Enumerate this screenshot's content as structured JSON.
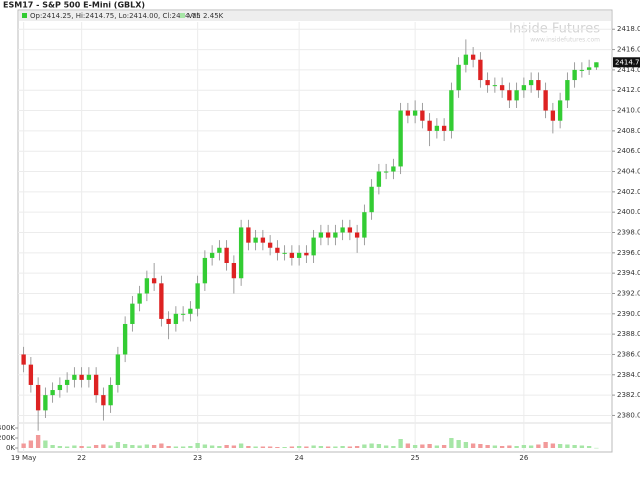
{
  "chart_data": {
    "type": "candlestick",
    "title": "ESM17 - S&P 500 E-Mini (GBLX)",
    "ohlc_label": "Op:2414.25, Hi:2414.75, Lo:2414.00, Cl:2414.75",
    "volume_label": "Vol: 2.45K",
    "watermark": "Inside Futures",
    "watermark_url": "www.insidefutures.com",
    "categories": [
      "19 May",
      null,
      null,
      null,
      null,
      null,
      null,
      null,
      "22",
      null,
      null,
      null,
      null,
      null,
      null,
      null,
      null,
      null,
      null,
      null,
      null,
      null,
      null,
      null,
      "23",
      null,
      null,
      null,
      null,
      null,
      null,
      null,
      null,
      null,
      null,
      null,
      null,
      null,
      "24",
      null,
      null,
      null,
      null,
      null,
      null,
      null,
      null,
      null,
      null,
      null,
      null,
      null,
      null,
      null,
      "25",
      null,
      null,
      null,
      null,
      null,
      null,
      null,
      null,
      null,
      null,
      null,
      null,
      null,
      null,
      "26",
      null,
      null,
      null,
      null,
      null,
      null,
      null,
      null,
      null,
      null
    ],
    "open": [
      2386,
      2385,
      2383,
      2380.5,
      2382,
      2382.5,
      2383,
      2383.5,
      2384,
      2383.5,
      2384,
      2382,
      2381,
      2383,
      2386,
      2389,
      2391,
      2392,
      2393.5,
      2393,
      2389.5,
      2389,
      2390,
      2390,
      2390.5,
      2393,
      2395.5,
      2396,
      2396.5,
      2395,
      2393.5,
      2398.5,
      2397,
      2397.5,
      2397,
      2396.5,
      2396,
      2396,
      2395.5,
      2396,
      2395.75,
      2397.5,
      2398,
      2397.5,
      2398,
      2398.5,
      2398,
      2397.5,
      2400,
      2402.5,
      2404,
      2404,
      2404.5,
      2410,
      2409.5,
      2410,
      2409,
      2408,
      2408.5,
      2408,
      2412,
      2414.5,
      2415.5,
      2415,
      2413,
      2412.5,
      2412.5,
      2412,
      2411,
      2412,
      2412.5,
      2413,
      2412,
      2410,
      2409,
      2411,
      2413,
      2414,
      2414,
      2414.25
    ],
    "high": [
      2386.75,
      2385.75,
      2383.75,
      2382.75,
      2383.25,
      2383.75,
      2384.25,
      2384.75,
      2384.75,
      2384.75,
      2384.75,
      2382.75,
      2383.75,
      2386.75,
      2389.75,
      2391.75,
      2392.75,
      2394.25,
      2395,
      2393.75,
      2390.25,
      2390.75,
      2390.75,
      2391.25,
      2393.75,
      2396.25,
      2396.75,
      2397.25,
      2397.25,
      2395.75,
      2399.25,
      2399.25,
      2398.25,
      2398.25,
      2397.75,
      2397.25,
      2396.75,
      2396.75,
      2396.75,
      2396.75,
      2398.25,
      2398.75,
      2398.75,
      2398.75,
      2399.25,
      2399.25,
      2398.75,
      2400.75,
      2403.25,
      2404.75,
      2404.75,
      2405.25,
      2410.75,
      2410.75,
      2411,
      2410.75,
      2409.75,
      2409.25,
      2409.25,
      2412.75,
      2415.25,
      2417,
      2416.25,
      2415.75,
      2413.75,
      2413.25,
      2413.25,
      2412.75,
      2412.75,
      2413.25,
      2413.75,
      2413.75,
      2412.75,
      2410.75,
      2411.75,
      2413.75,
      2414.75,
      2414.75,
      2415,
      2414.75
    ],
    "low": [
      2384.25,
      2382.25,
      2378.5,
      2379.75,
      2381.25,
      2381.75,
      2382.25,
      2382.75,
      2382.75,
      2382.75,
      2381.25,
      2379.5,
      2380.25,
      2382.25,
      2385.25,
      2388.25,
      2390.25,
      2391.25,
      2392.25,
      2388.75,
      2387.5,
      2388.25,
      2389.25,
      2389.25,
      2389.75,
      2392.25,
      2394.75,
      2395.25,
      2394.25,
      2392,
      2392.75,
      2396.25,
      2396.25,
      2396.25,
      2395.75,
      2395.25,
      2395.25,
      2394.75,
      2394.75,
      2395,
      2395,
      2396.75,
      2396.75,
      2396.75,
      2397.25,
      2397.25,
      2396,
      2396.75,
      2399.25,
      2401.75,
      2403.25,
      2403.25,
      2403.75,
      2408.75,
      2408.75,
      2408.25,
      2406.5,
      2407.25,
      2407,
      2407.25,
      2411.25,
      2413.75,
      2414.25,
      2412.25,
      2411.75,
      2411.75,
      2411.25,
      2410.25,
      2410.25,
      2411.25,
      2411.75,
      2411.25,
      2409.25,
      2407.75,
      2408.25,
      2410.25,
      2412.25,
      2413.25,
      2413.5,
      2414
    ],
    "close": [
      2385,
      2383,
      2380.5,
      2382,
      2382.5,
      2383,
      2383.5,
      2384,
      2383.5,
      2384,
      2382,
      2381,
      2383,
      2386,
      2389,
      2391,
      2392,
      2393.5,
      2393,
      2389.5,
      2389,
      2390,
      2390,
      2390.5,
      2393,
      2395.5,
      2396,
      2396.5,
      2395,
      2393.5,
      2398.5,
      2397,
      2397.5,
      2397,
      2396.5,
      2396,
      2396,
      2395.5,
      2396,
      2395.75,
      2397.5,
      2398,
      2397.5,
      2398,
      2398.5,
      2398,
      2397.5,
      2400,
      2402.5,
      2404,
      2404,
      2404.5,
      2410,
      2409.5,
      2410,
      2409,
      2408,
      2408.5,
      2408,
      2412,
      2414.5,
      2415.5,
      2415,
      2413,
      2412.5,
      2412.5,
      2412,
      2411,
      2412,
      2412.5,
      2413,
      2412,
      2410,
      2409,
      2411,
      2413,
      2414,
      2414,
      2414.25,
      2414.75
    ],
    "volume": [
      90000,
      150000,
      260000,
      150000,
      60000,
      40000,
      30000,
      50000,
      40000,
      30000,
      60000,
      70000,
      50000,
      120000,
      80000,
      60000,
      50000,
      70000,
      60000,
      90000,
      40000,
      30000,
      30000,
      40000,
      100000,
      70000,
      50000,
      40000,
      60000,
      50000,
      90000,
      40000,
      30000,
      30000,
      30000,
      20000,
      20000,
      30000,
      40000,
      30000,
      50000,
      40000,
      30000,
      30000,
      40000,
      30000,
      40000,
      70000,
      90000,
      80000,
      50000,
      40000,
      180000,
      90000,
      60000,
      70000,
      80000,
      50000,
      60000,
      200000,
      160000,
      120000,
      90000,
      80000,
      60000,
      50000,
      40000,
      50000,
      40000,
      60000,
      50000,
      70000,
      120000,
      90000,
      80000,
      70000,
      60000,
      50000,
      40000,
      2450
    ],
    "up_color": "#33cc33",
    "down_color": "#dd2222",
    "vol_up_color": "#a6e6a6",
    "vol_down_color": "#f29a9a",
    "ylim": [
      2376.6,
      2419.5
    ],
    "yticks": [
      {
        "value": 2378,
        "label": "2378.00"
      },
      {
        "value": 2380,
        "label": "2380.00"
      },
      {
        "value": 2382,
        "label": "2382.00"
      },
      {
        "value": 2384,
        "label": "2384.00"
      },
      {
        "value": 2386,
        "label": "2386.00"
      },
      {
        "value": 2388,
        "label": "2388.00"
      },
      {
        "value": 2390,
        "label": "2390.00"
      },
      {
        "value": 2392,
        "label": "2392.00"
      },
      {
        "value": 2394,
        "label": "2394.00"
      },
      {
        "value": 2396,
        "label": "2396.00"
      },
      {
        "value": 2398,
        "label": "2398.00"
      },
      {
        "value": 2400,
        "label": "2400.00"
      },
      {
        "value": 2402,
        "label": "2402.00"
      },
      {
        "value": 2404,
        "label": "2404.00"
      },
      {
        "value": 2406,
        "label": "2406.00"
      },
      {
        "value": 2408,
        "label": "2408.00"
      },
      {
        "value": 2410,
        "label": "2410.00"
      },
      {
        "value": 2412,
        "label": "2412.00"
      },
      {
        "value": 2414,
        "label": "2414.00"
      },
      {
        "value": 2416,
        "label": "2416.00"
      },
      {
        "value": 2418,
        "label": "2418.00"
      }
    ],
    "vol_ylim": [
      0,
      500000
    ],
    "vol_yticks": [
      {
        "value": 0,
        "label": "0K"
      },
      {
        "value": 200000,
        "label": "200K"
      },
      {
        "value": 400000,
        "label": "400K"
      }
    ],
    "grid": true
  }
}
